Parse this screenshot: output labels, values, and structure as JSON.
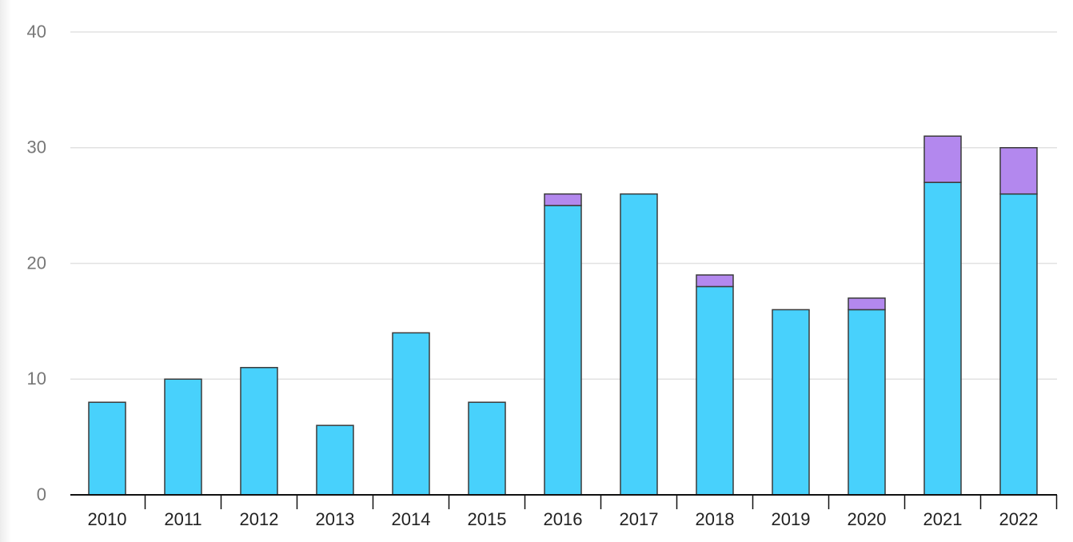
{
  "chart_data": {
    "type": "bar",
    "stacked": true,
    "categories": [
      "2010",
      "2011",
      "2012",
      "2013",
      "2014",
      "2015",
      "2016",
      "2017",
      "2018",
      "2019",
      "2020",
      "2021",
      "2022"
    ],
    "series": [
      {
        "color": "#48d1fc",
        "values": [
          8,
          10,
          11,
          6,
          14,
          8,
          25,
          26,
          18,
          16,
          16,
          27,
          26
        ]
      },
      {
        "color": "#b388ee",
        "values": [
          0,
          0,
          0,
          0,
          0,
          0,
          1,
          0,
          1,
          0,
          1,
          4,
          4
        ]
      }
    ],
    "ylim": [
      0,
      40
    ],
    "yticks": [
      0,
      10,
      20,
      30,
      40
    ],
    "ytick_labels": [
      "0",
      "10",
      "20",
      "30",
      "40"
    ],
    "grid": true,
    "title": "",
    "xlabel": "",
    "ylabel": ""
  }
}
